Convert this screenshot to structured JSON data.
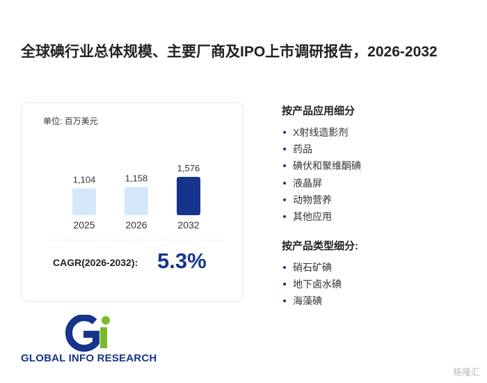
{
  "title": "全球碘行业总体规模、主要厂商及IPO上市调研报告，2026-2032",
  "unit": "单位: 百万美元",
  "chart_data": {
    "type": "bar",
    "categories": [
      "2025",
      "2026",
      "2032"
    ],
    "values": [
      1104,
      1158,
      1576
    ],
    "value_labels": [
      "1,104",
      "1,158",
      "1,576"
    ],
    "colors": [
      "#d5e7fa",
      "#d5e7fa",
      "#17348c"
    ]
  },
  "cagr_label": "CAGR(2026-2032):",
  "cagr_value": "5.3%",
  "application": {
    "heading": "按产品应用细分",
    "items": [
      "X射线造影剂",
      "药品",
      "碘伏和聚维酮碘",
      "液晶屏",
      "动物营养",
      "其他应用"
    ]
  },
  "product_type": {
    "heading": "按产品类型细分:",
    "items": [
      "硝石矿碘",
      "地下卤水碘",
      "海藻碘"
    ]
  },
  "logo_text": "GLOBAL INFO RESEARCH",
  "watermark": "格隆汇"
}
